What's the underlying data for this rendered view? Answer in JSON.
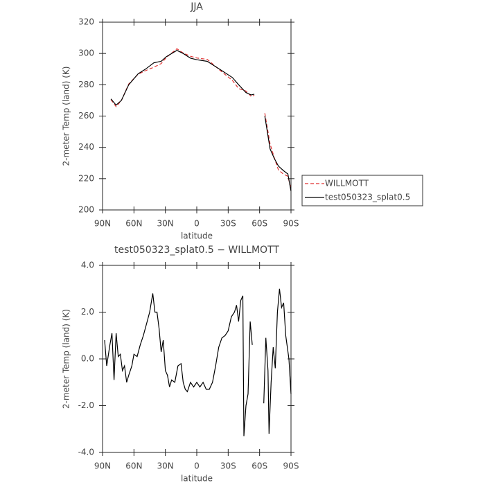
{
  "chart_data": [
    {
      "type": "line",
      "title": "JJA",
      "xlabel": "latitude",
      "ylabel": "2-meter Temp (land) (K)",
      "xlim": [
        90,
        -90
      ],
      "xticks": [
        {
          "value": 90,
          "label": "90N"
        },
        {
          "value": 60,
          "label": "60N"
        },
        {
          "value": 30,
          "label": "30N"
        },
        0,
        {
          "value": -30,
          "label": "30S"
        },
        {
          "value": -60,
          "label": "60S"
        },
        {
          "value": -90,
          "label": "90S"
        }
      ],
      "ylim": [
        200,
        320
      ],
      "yticks": [
        200,
        220,
        240,
        260,
        280,
        300,
        320
      ],
      "legend": "right",
      "x": [
        82,
        77,
        72,
        65,
        56,
        49,
        41,
        34,
        29,
        19,
        13,
        6,
        0,
        -10,
        -17,
        -24,
        -34,
        -40,
        -47,
        -52,
        -55,
        -60,
        -65,
        -70,
        -74,
        -78,
        -83,
        -87,
        -90
      ],
      "series": [
        {
          "name": "WILLMOTT",
          "color": "#e03030",
          "linestyle": "dashed",
          "values": [
            270.5,
            266,
            269.9,
            280.5,
            286.8,
            289,
            291.2,
            293.5,
            297.5,
            303,
            300.3,
            298.2,
            297.1,
            296.2,
            292.3,
            288.2,
            282.8,
            277.6,
            276,
            272.5,
            273.3,
            null,
            261.8,
            242.2,
            233.5,
            225.5,
            222.8,
            221.5,
            213.5
          ]
        },
        {
          "name": "test050323_splat0.5",
          "color": "#000000",
          "linestyle": "solid",
          "values": [
            271,
            267,
            270,
            280,
            287,
            290,
            294,
            295,
            298,
            302,
            300,
            297,
            296,
            295,
            292,
            289,
            284.6,
            280,
            275,
            273.5,
            274,
            null,
            260,
            239,
            233,
            228,
            225,
            223,
            212
          ]
        }
      ]
    },
    {
      "type": "line",
      "title": "test050323_splat0.5 − WILLMOTT",
      "xlabel": "latitude",
      "ylabel": "2-meter Temp (land) (K)",
      "xlim": [
        90,
        -90
      ],
      "xticks": [
        {
          "value": 90,
          "label": "90N"
        },
        {
          "value": 60,
          "label": "60N"
        },
        {
          "value": 30,
          "label": "30N"
        },
        0,
        {
          "value": -30,
          "label": "30S"
        },
        {
          "value": -60,
          "label": "60S"
        },
        {
          "value": -90,
          "label": "90S"
        }
      ],
      "ylim": [
        -4,
        4
      ],
      "yticks": [
        {
          "value": -4,
          "label": "-4.0"
        },
        {
          "value": -2,
          "label": "-2.0"
        },
        {
          "value": 0,
          "label": "0.0"
        },
        {
          "value": 2,
          "label": "2.0"
        },
        {
          "value": 4,
          "label": "4.0"
        }
      ],
      "x": [
        88,
        86,
        83,
        81,
        79,
        77,
        75,
        73,
        71,
        69,
        67,
        65,
        62,
        60,
        57,
        54,
        51,
        48,
        45,
        42,
        40,
        38,
        36,
        34,
        32,
        30,
        28,
        26,
        24,
        21,
        18,
        15,
        13,
        11,
        9,
        6,
        3,
        0,
        -3,
        -6,
        -9,
        -12,
        -15,
        -18,
        -21,
        -24,
        -27,
        -30,
        -33,
        -36,
        -38,
        -40,
        -42,
        -44,
        -45,
        -47,
        -49,
        -51,
        -53,
        -58,
        -64,
        -66,
        -68,
        -69,
        -71,
        -73,
        -75,
        -77,
        -79,
        -81,
        -83,
        -85,
        -88,
        -90
      ],
      "series": [
        {
          "color": "#000000",
          "linestyle": "solid",
          "values": [
            0.8,
            -0.3,
            0.6,
            1.1,
            -0.9,
            1.1,
            0.1,
            0.2,
            -0.5,
            -0.3,
            -1.0,
            -0.7,
            -0.3,
            0.2,
            0.1,
            0.6,
            1.0,
            1.5,
            2.0,
            2.8,
            2.0,
            2.0,
            1.3,
            0.3,
            0.8,
            -0.5,
            -0.7,
            -1.2,
            -0.9,
            -1.0,
            -0.3,
            -0.2,
            -1.0,
            -1.3,
            -1.4,
            -1.0,
            -1.2,
            -1.0,
            -1.2,
            -1.0,
            -1.3,
            -1.3,
            -1.0,
            -0.3,
            0.5,
            0.9,
            1.0,
            1.2,
            1.8,
            2.0,
            2.3,
            1.6,
            2.5,
            2.7,
            -3.3,
            -2.0,
            -1.5,
            1.6,
            0.6,
            null,
            -1.9,
            0.9,
            -0.5,
            -3.2,
            -1.0,
            0.5,
            -0.4,
            2.0,
            3.0,
            2.2,
            2.4,
            1.0,
            0.0,
            -1.5
          ]
        }
      ]
    }
  ]
}
